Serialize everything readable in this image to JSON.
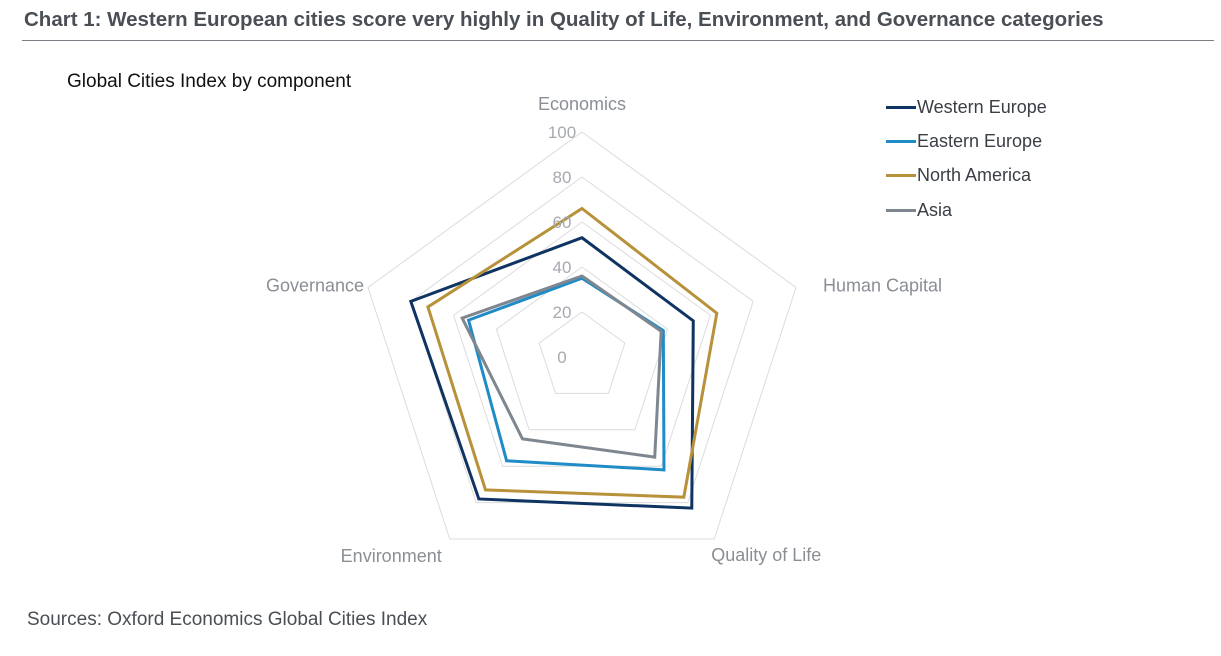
{
  "header": {
    "title": "Chart 1: Western European cities score very highly in Quality of Life, Environment, and Governance categories"
  },
  "subtitle": "Global Cities Index by component",
  "source": "Sources: Oxford Economics Global Cities Index",
  "chart_data": {
    "type": "radar",
    "title": "Global Cities Index by component",
    "axes": [
      "Economics",
      "Human Capital",
      "Quality of Life",
      "Environment",
      "Governance"
    ],
    "rlim": [
      0,
      100
    ],
    "rticks": [
      0,
      20,
      40,
      60,
      80,
      100
    ],
    "grid": true,
    "legend": "top-right",
    "series": [
      {
        "name": "Western Europe",
        "color": "#0f3462",
        "values": [
          53,
          52,
          83,
          78,
          80
        ]
      },
      {
        "name": "Eastern Europe",
        "color": "#1f8bc7",
        "values": [
          35,
          38,
          62,
          57,
          53
        ]
      },
      {
        "name": "North America",
        "color": "#b8923a",
        "values": [
          66,
          63,
          77,
          73,
          72
        ]
      },
      {
        "name": "Asia",
        "color": "#7e878f",
        "values": [
          36,
          37,
          55,
          45,
          56
        ]
      }
    ]
  }
}
